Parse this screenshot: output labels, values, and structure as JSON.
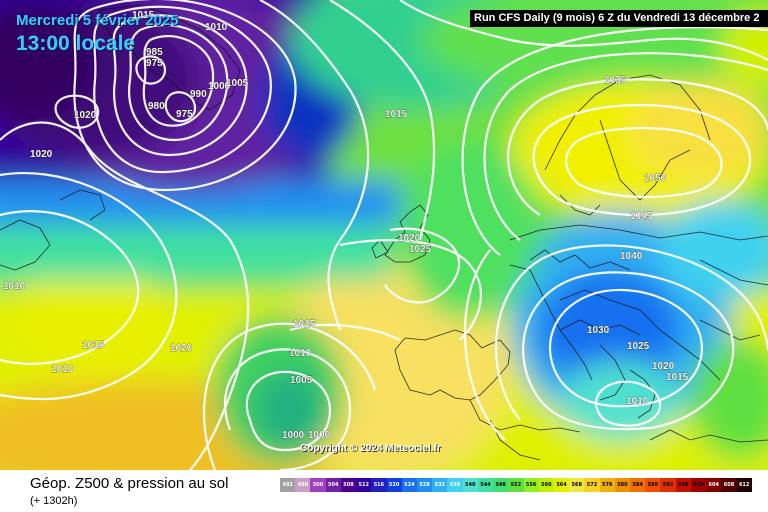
{
  "header": {
    "date": "Mercredi 5 février 2025",
    "time": "13:00 locale",
    "run_info": "Run CFS Daily (9 mois) 6 Z du Vendredi 13 décembre 2"
  },
  "copyright": "Copyright © 2024 Meteociel.fr",
  "legend": {
    "title": "Géop. Z500 & pression au sol",
    "subtitle": "(+ 1302h)",
    "scale_values": [
      "492",
      "496",
      "500",
      "504",
      "508",
      "512",
      "516",
      "520",
      "524",
      "528",
      "532",
      "536",
      "540",
      "544",
      "548",
      "552",
      "556",
      "560",
      "564",
      "568",
      "572",
      "576",
      "580",
      "584",
      "588",
      "592",
      "596",
      "600",
      "604",
      "608",
      "612"
    ],
    "scale_colors": [
      "#a0a0a0",
      "#c8a0c8",
      "#a040c0",
      "#7020a0",
      "#500090",
      "#3000a0",
      "#2020c0",
      "#1040e0",
      "#1870f0",
      "#2090f0",
      "#30b0f0",
      "#40d0f0",
      "#50e0d0",
      "#40e0a0",
      "#40e070",
      "#60e040",
      "#90f020",
      "#c0f000",
      "#e0f000",
      "#f0e840",
      "#f8d020",
      "#f0b010",
      "#f09000",
      "#f07000",
      "#f05000",
      "#e03000",
      "#c01000",
      "#a00000",
      "#800000",
      "#500000",
      "#200000"
    ]
  },
  "isobar_labels": [
    "1015",
    "1010",
    "985",
    "975",
    "1020",
    "1020",
    "990",
    "1000",
    "1005",
    "980",
    "975",
    "1015",
    "1035",
    "1050",
    "1045",
    "1040",
    "1020",
    "1025",
    "1010",
    "1030",
    "1015",
    "1025",
    "1020",
    "1015",
    "1010",
    "1010",
    "1015",
    "1020",
    "1010",
    "1005",
    "1000",
    "1000"
  ]
}
